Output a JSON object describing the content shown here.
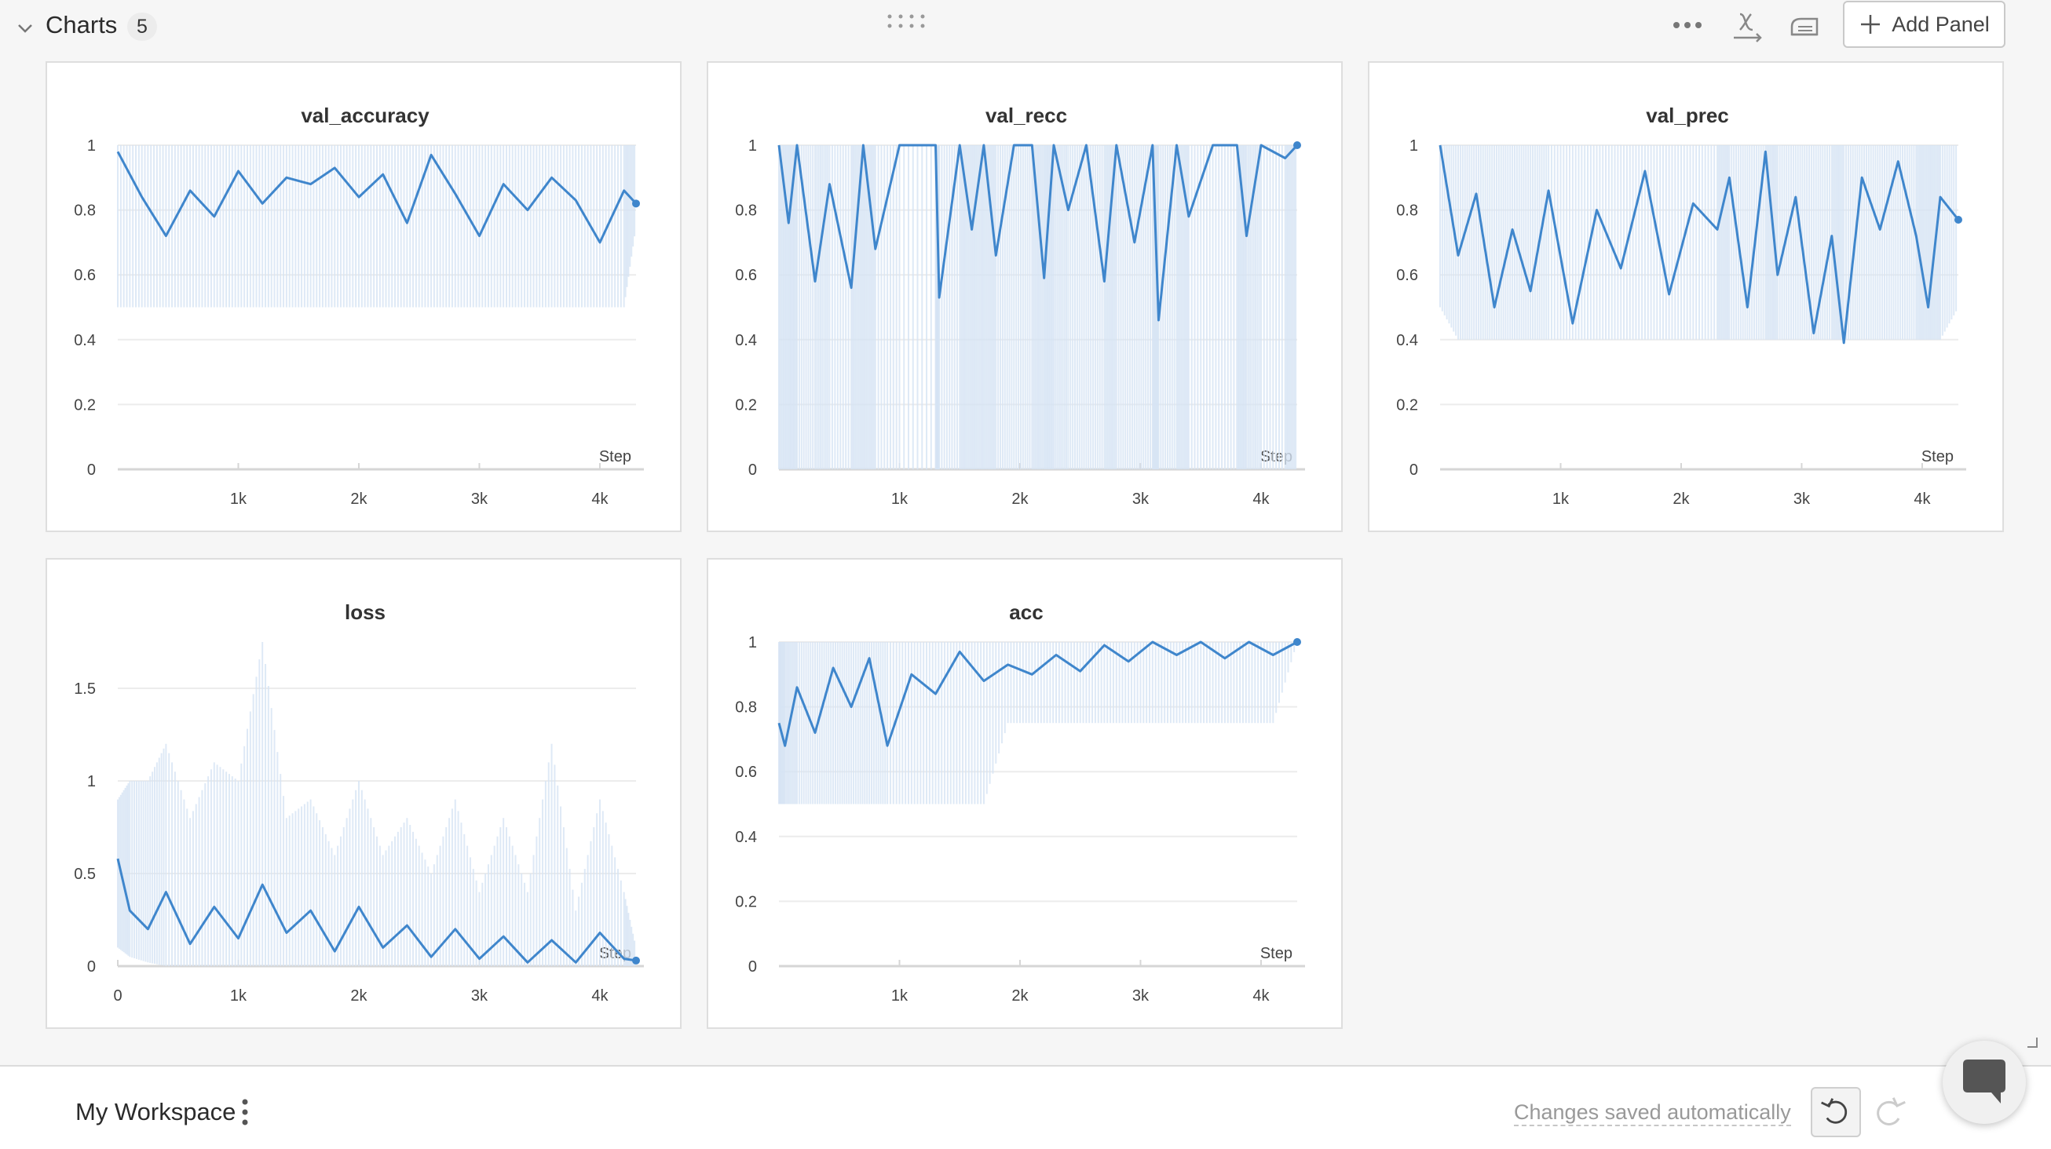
{
  "section": {
    "title": "Charts",
    "count": "5",
    "add_panel_label": "Add Panel"
  },
  "footer": {
    "workspace_name": "My Workspace",
    "save_status": "Changes saved automatically"
  },
  "colors": {
    "line": "#3f86cc",
    "raw_band": "#d6e4f4",
    "background": "#f6f6f6"
  },
  "icons": [
    "chevron-down-icon",
    "drag-handle-icon",
    "more-dots-icon",
    "x-axis-icon",
    "smoothing-icon",
    "plus-icon",
    "kebab-menu-icon",
    "undo-icon",
    "redo-icon",
    "chat-icon"
  ],
  "chart_data": [
    {
      "type": "line",
      "title": "val_accuracy",
      "xlabel": "Step",
      "x_range": [
        0,
        4300
      ],
      "ylim": [
        0,
        1
      ],
      "y_ticks": [
        "0",
        "0.2",
        "0.4",
        "0.6",
        "0.8",
        "1"
      ],
      "x_ticks": [
        "1k",
        "2k",
        "3k",
        "4k"
      ],
      "grid": true,
      "series": [
        {
          "x": [
            0,
            200,
            400,
            600,
            800,
            1000,
            1200,
            1400,
            1600,
            1800,
            2000,
            2200,
            2400,
            2600,
            2800,
            3000,
            3200,
            3400,
            3600,
            3800,
            4000,
            4200,
            4300
          ],
          "y": [
            0.98,
            0.84,
            0.72,
            0.86,
            0.78,
            0.92,
            0.82,
            0.9,
            0.88,
            0.93,
            0.84,
            0.91,
            0.76,
            0.97,
            0.85,
            0.72,
            0.88,
            0.8,
            0.9,
            0.83,
            0.7,
            0.86,
            0.82
          ],
          "raw_min": [
            0.5,
            0.5,
            0.5,
            0.5,
            0.5,
            0.5,
            0.5,
            0.5,
            0.5,
            0.5,
            0.5,
            0.5,
            0.5,
            0.5,
            0.5,
            0.5,
            0.5,
            0.5,
            0.5,
            0.5,
            0.5,
            0.5,
            0.75
          ],
          "raw_max": [
            1,
            1,
            1,
            1,
            1,
            1,
            1,
            1,
            1,
            1,
            1,
            1,
            1,
            1,
            1,
            1,
            1,
            1,
            1,
            1,
            1,
            1,
            1
          ]
        }
      ]
    },
    {
      "type": "line",
      "title": "val_recc",
      "xlabel": "Step",
      "x_range": [
        0,
        4300
      ],
      "ylim": [
        0,
        1
      ],
      "y_ticks": [
        "0",
        "0.2",
        "0.4",
        "0.6",
        "0.8",
        "1"
      ],
      "x_ticks": [
        "1k",
        "2k",
        "3k",
        "4k"
      ],
      "grid": true,
      "series": [
        {
          "x": [
            0,
            80,
            150,
            300,
            420,
            600,
            700,
            800,
            1000,
            1300,
            1330,
            1500,
            1600,
            1700,
            1800,
            1950,
            2100,
            2200,
            2280,
            2400,
            2550,
            2700,
            2800,
            2950,
            3100,
            3150,
            3300,
            3400,
            3600,
            3800,
            3880,
            4000,
            4200,
            4300
          ],
          "y": [
            1,
            0.76,
            1,
            0.58,
            0.88,
            0.56,
            1,
            0.68,
            1,
            1,
            0.53,
            1,
            0.74,
            1,
            0.66,
            1,
            1,
            0.59,
            1,
            0.8,
            1,
            0.58,
            1,
            0.7,
            1,
            0.46,
            1,
            0.78,
            1,
            1,
            0.72,
            1,
            0.96,
            1
          ],
          "raw_min": [
            0,
            0,
            0,
            0,
            0,
            0,
            0,
            0,
            0,
            0,
            0,
            0,
            0,
            0,
            0,
            0,
            0,
            0,
            0,
            0,
            0,
            0,
            0,
            0,
            0,
            0,
            0,
            0,
            0,
            0,
            0,
            0,
            0,
            0
          ],
          "raw_max": [
            1,
            1,
            1,
            1,
            1,
            1,
            1,
            1,
            1,
            1,
            1,
            1,
            1,
            1,
            1,
            1,
            1,
            1,
            1,
            1,
            1,
            1,
            1,
            1,
            1,
            1,
            1,
            1,
            1,
            1,
            1,
            1,
            1,
            1
          ]
        }
      ]
    },
    {
      "type": "line",
      "title": "val_prec",
      "xlabel": "Step",
      "x_range": [
        0,
        4300
      ],
      "ylim": [
        0,
        1
      ],
      "y_ticks": [
        "0",
        "0.2",
        "0.4",
        "0.6",
        "0.8",
        "1"
      ],
      "x_ticks": [
        "1k",
        "2k",
        "3k",
        "4k"
      ],
      "grid": true,
      "series": [
        {
          "x": [
            0,
            150,
            300,
            450,
            600,
            750,
            900,
            1100,
            1300,
            1500,
            1700,
            1900,
            2100,
            2300,
            2400,
            2550,
            2700,
            2800,
            2950,
            3100,
            3250,
            3350,
            3500,
            3650,
            3800,
            3950,
            4050,
            4150,
            4300
          ],
          "y": [
            1,
            0.66,
            0.85,
            0.5,
            0.74,
            0.55,
            0.86,
            0.45,
            0.8,
            0.62,
            0.92,
            0.54,
            0.82,
            0.74,
            0.9,
            0.5,
            0.98,
            0.6,
            0.84,
            0.42,
            0.72,
            0.39,
            0.9,
            0.74,
            0.95,
            0.72,
            0.5,
            0.84,
            0.77
          ],
          "raw_min": [
            0.5,
            0.4,
            0.4,
            0.4,
            0.4,
            0.4,
            0.4,
            0.4,
            0.4,
            0.4,
            0.4,
            0.4,
            0.4,
            0.4,
            0.4,
            0.4,
            0.4,
            0.4,
            0.4,
            0.4,
            0.4,
            0.4,
            0.4,
            0.4,
            0.4,
            0.4,
            0.4,
            0.4,
            0.5
          ],
          "raw_max": [
            1,
            1,
            1,
            1,
            1,
            1,
            1,
            1,
            1,
            1,
            1,
            1,
            1,
            1,
            1,
            1,
            1,
            1,
            1,
            1,
            1,
            1,
            1,
            1,
            1,
            1,
            1,
            1,
            1
          ]
        }
      ]
    },
    {
      "type": "line",
      "title": "loss",
      "xlabel": "Step",
      "x_range": [
        0,
        4300
      ],
      "ylim": [
        0,
        1.75
      ],
      "y_ticks": [
        "0",
        "0.5",
        "1",
        "1.5"
      ],
      "y_tick_values": [
        0,
        0.5,
        1,
        1.5
      ],
      "x_ticks": [
        "0",
        "1k",
        "2k",
        "3k",
        "4k"
      ],
      "x_tick_values": [
        0,
        1000,
        2000,
        3000,
        4000
      ],
      "grid": true,
      "series": [
        {
          "x": [
            0,
            100,
            250,
            400,
            600,
            800,
            1000,
            1200,
            1400,
            1600,
            1800,
            2000,
            2200,
            2400,
            2600,
            2800,
            3000,
            3200,
            3400,
            3600,
            3800,
            4000,
            4200,
            4300
          ],
          "y": [
            0.58,
            0.3,
            0.2,
            0.4,
            0.12,
            0.32,
            0.15,
            0.44,
            0.18,
            0.3,
            0.08,
            0.32,
            0.1,
            0.22,
            0.05,
            0.2,
            0.04,
            0.16,
            0.02,
            0.14,
            0.02,
            0.18,
            0.04,
            0.03
          ],
          "raw_min": [
            0.1,
            0.05,
            0.02,
            0,
            0,
            0,
            0,
            0,
            0,
            0,
            0,
            0,
            0,
            0,
            0,
            0,
            0,
            0,
            0,
            0,
            0,
            0,
            0,
            0
          ],
          "raw_max": [
            0.9,
            1.0,
            1.0,
            1.2,
            0.8,
            1.1,
            1.0,
            1.75,
            0.8,
            0.9,
            0.6,
            1.0,
            0.6,
            0.8,
            0.5,
            0.9,
            0.4,
            0.8,
            0.4,
            1.2,
            0.3,
            0.9,
            0.4,
            0.1
          ]
        }
      ]
    },
    {
      "type": "line",
      "title": "acc",
      "xlabel": "Step",
      "x_range": [
        0,
        4300
      ],
      "ylim": [
        0,
        1
      ],
      "y_ticks": [
        "0",
        "0.2",
        "0.4",
        "0.6",
        "0.8",
        "1"
      ],
      "x_ticks": [
        "1k",
        "2k",
        "3k",
        "4k"
      ],
      "grid": true,
      "series": [
        {
          "x": [
            0,
            50,
            150,
            300,
            450,
            600,
            750,
            900,
            1100,
            1300,
            1500,
            1700,
            1900,
            2100,
            2300,
            2500,
            2700,
            2900,
            3100,
            3300,
            3500,
            3700,
            3900,
            4100,
            4300
          ],
          "y": [
            0.75,
            0.68,
            0.86,
            0.72,
            0.92,
            0.8,
            0.95,
            0.68,
            0.9,
            0.84,
            0.97,
            0.88,
            0.93,
            0.9,
            0.96,
            0.91,
            0.99,
            0.94,
            1,
            0.96,
            1,
            0.95,
            1,
            0.96,
            1
          ],
          "raw_min": [
            0.5,
            0.5,
            0.5,
            0.5,
            0.5,
            0.5,
            0.5,
            0.5,
            0.5,
            0.5,
            0.5,
            0.5,
            0.75,
            0.75,
            0.75,
            0.75,
            0.75,
            0.75,
            0.75,
            0.75,
            0.75,
            0.75,
            0.75,
            0.75,
            1
          ],
          "raw_max": [
            1,
            1,
            1,
            1,
            1,
            1,
            1,
            1,
            1,
            1,
            1,
            1,
            1,
            1,
            1,
            1,
            1,
            1,
            1,
            1,
            1,
            1,
            1,
            1,
            1
          ]
        }
      ]
    }
  ]
}
